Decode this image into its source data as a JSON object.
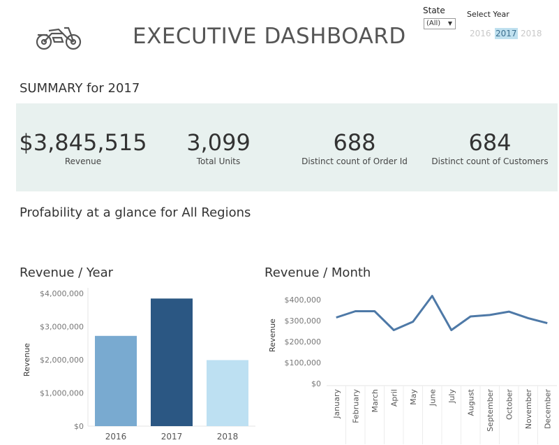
{
  "header": {
    "title": "EXECUTIVE DASHBOARD",
    "logo_icon": "motorcycle-icon"
  },
  "filters": {
    "state_label": "State",
    "state_value": "(All)",
    "year_label": "Select Year",
    "years": [
      "2016",
      "2017",
      "2018"
    ],
    "selected_year": "2017"
  },
  "summary": {
    "title": "SUMMARY for 2017",
    "kpis": [
      {
        "value": "$3,845,515",
        "label": "Revenue"
      },
      {
        "value": "3,099",
        "label": "Total Units"
      },
      {
        "value": "688",
        "label": "Distinct count of Order Id"
      },
      {
        "value": "684",
        "label": "Distinct count of Customers"
      }
    ]
  },
  "profit_title": "Profability at a glance for All Regions",
  "colors": {
    "bar_2016": "#79aad0",
    "bar_2017": "#2b5783",
    "bar_2018": "#bde0f2",
    "line": "#4e79a7",
    "kpi_band": "#e8f1ef"
  },
  "chart_data": [
    {
      "type": "bar",
      "title": "Revenue / Year",
      "ylabel": "Revenue",
      "xlabel": "",
      "categories": [
        "2016",
        "2017",
        "2018"
      ],
      "values": [
        2720000,
        3845515,
        1990000
      ],
      "ylim": [
        0,
        4000000
      ],
      "yticks": [
        0,
        1000000,
        2000000,
        3000000,
        4000000
      ],
      "ytick_labels": [
        "$0",
        "$1,000,000",
        "$2,000,000",
        "$3,000,000",
        "$4,000,000"
      ],
      "grid": false
    },
    {
      "type": "line",
      "title": "Revenue / Month",
      "ylabel": "Revenue",
      "xlabel": "",
      "categories": [
        "January",
        "February",
        "March",
        "April",
        "May",
        "June",
        "July",
        "August",
        "September",
        "October",
        "November",
        "December"
      ],
      "values": [
        315000,
        345000,
        345000,
        255000,
        295000,
        418000,
        255000,
        320000,
        327000,
        343000,
        312000,
        288000
      ],
      "ylim": [
        0,
        430000
      ],
      "yticks": [
        0,
        100000,
        200000,
        300000,
        400000
      ],
      "ytick_labels": [
        "$0",
        "$100,000",
        "$200,000",
        "$300,000",
        "$400,000"
      ],
      "grid": false
    }
  ]
}
